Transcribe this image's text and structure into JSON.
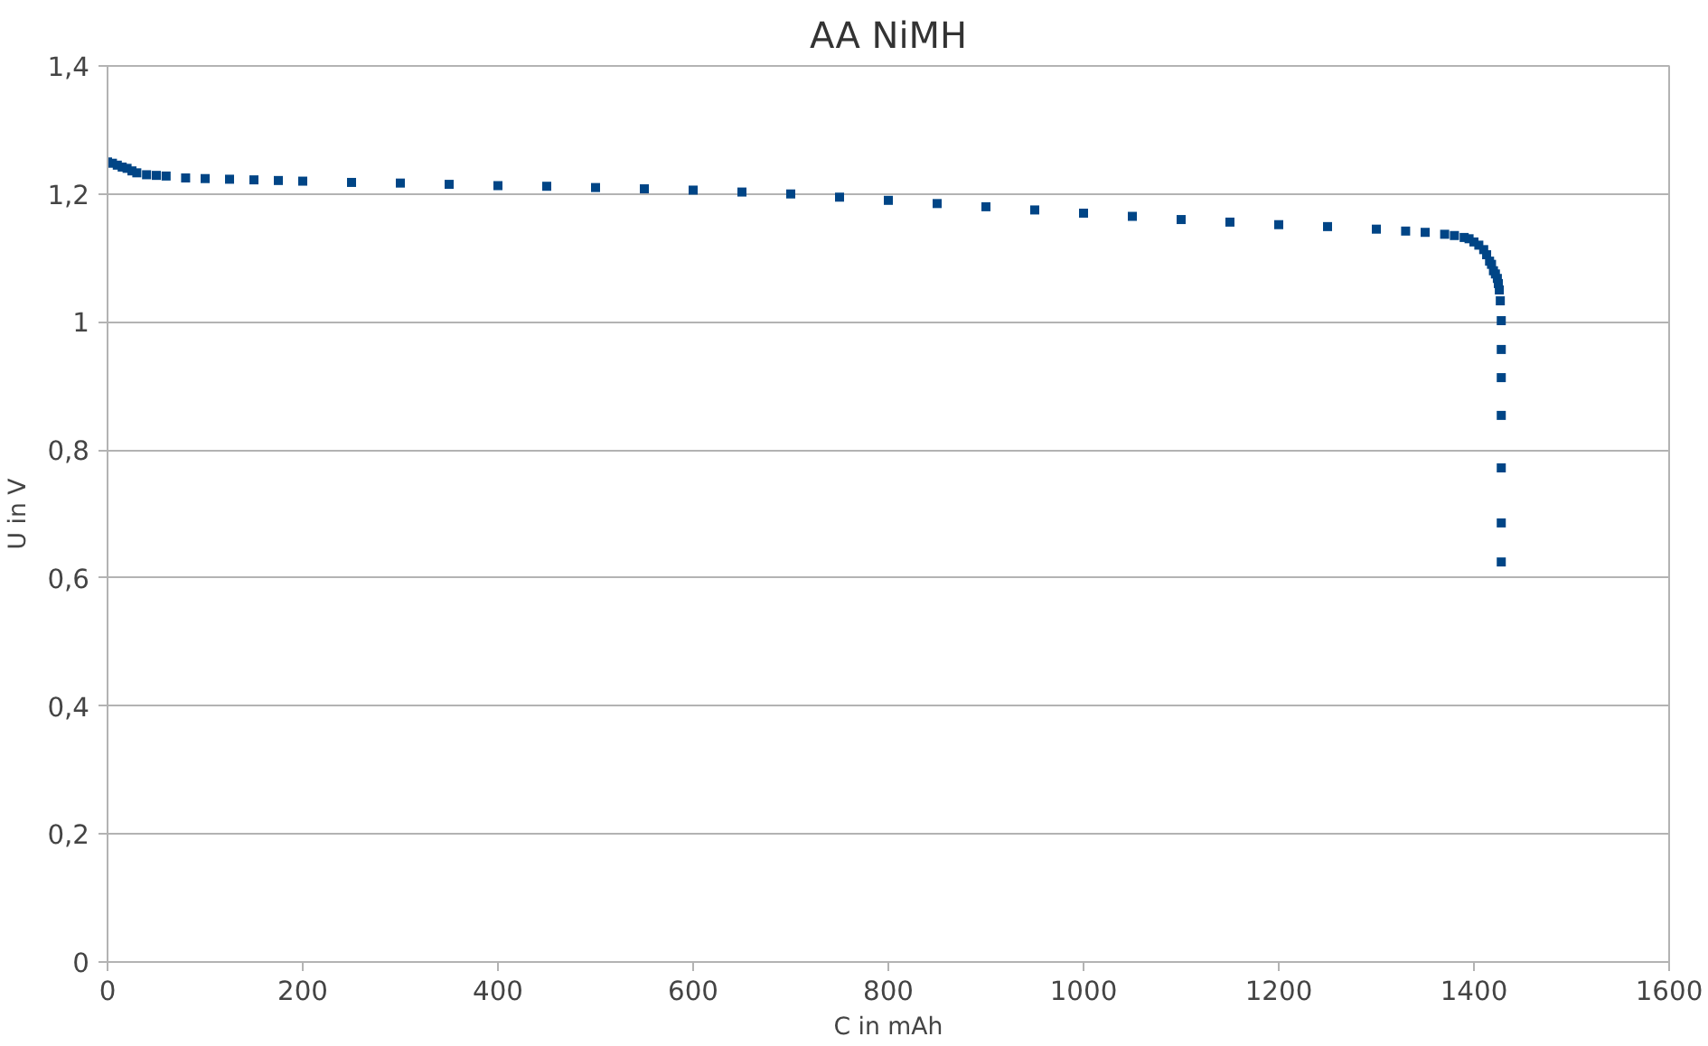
{
  "chart_data": {
    "type": "scatter",
    "title": "AA NiMH",
    "xlabel": "C in mAh",
    "ylabel": "U in V",
    "xlim": [
      0,
      1600
    ],
    "xticks": [
      0,
      200,
      400,
      600,
      800,
      1000,
      1200,
      1400,
      1600
    ],
    "ylim": [
      0,
      1.4
    ],
    "yticks": [
      0,
      {
        "value": 0.2,
        "label": "0,2"
      },
      {
        "value": 0.4,
        "label": "0,4"
      },
      {
        "value": 0.6,
        "label": "0,6"
      },
      {
        "value": 0.8,
        "label": "0,8"
      },
      1,
      {
        "value": 1.2,
        "label": "1,2"
      },
      {
        "value": 1.4,
        "label": "1,4"
      }
    ],
    "grid": "y",
    "marker": "square",
    "series": [
      {
        "color": "#004586",
        "x": [
          0,
          5,
          10,
          15,
          20,
          25,
          30,
          40,
          50,
          60,
          80,
          100,
          125,
          150,
          175,
          200,
          250,
          300,
          350,
          400,
          450,
          500,
          550,
          600,
          650,
          700,
          750,
          800,
          850,
          900,
          950,
          1000,
          1050,
          1100,
          1150,
          1200,
          1250,
          1300,
          1330,
          1350,
          1370,
          1380,
          1390,
          1395,
          1400,
          1405,
          1410,
          1413,
          1416,
          1418,
          1420,
          1422,
          1424,
          1425,
          1426,
          1427,
          1428,
          1428,
          1428,
          1428,
          1428,
          1428,
          1428
        ],
        "values": [
          1.25,
          1.248,
          1.245,
          1.242,
          1.24,
          1.236,
          1.233,
          1.23,
          1.229,
          1.228,
          1.225,
          1.224,
          1.223,
          1.222,
          1.221,
          1.22,
          1.218,
          1.217,
          1.215,
          1.213,
          1.212,
          1.21,
          1.208,
          1.206,
          1.203,
          1.2,
          1.195,
          1.19,
          1.185,
          1.18,
          1.175,
          1.17,
          1.165,
          1.16,
          1.156,
          1.152,
          1.149,
          1.145,
          1.142,
          1.14,
          1.137,
          1.135,
          1.132,
          1.13,
          1.125,
          1.12,
          1.113,
          1.105,
          1.095,
          1.09,
          1.08,
          1.075,
          1.068,
          1.06,
          1.05,
          1.033,
          1.002,
          0.957,
          0.913,
          0.854,
          0.772,
          0.686,
          0.625
        ]
      }
    ]
  }
}
